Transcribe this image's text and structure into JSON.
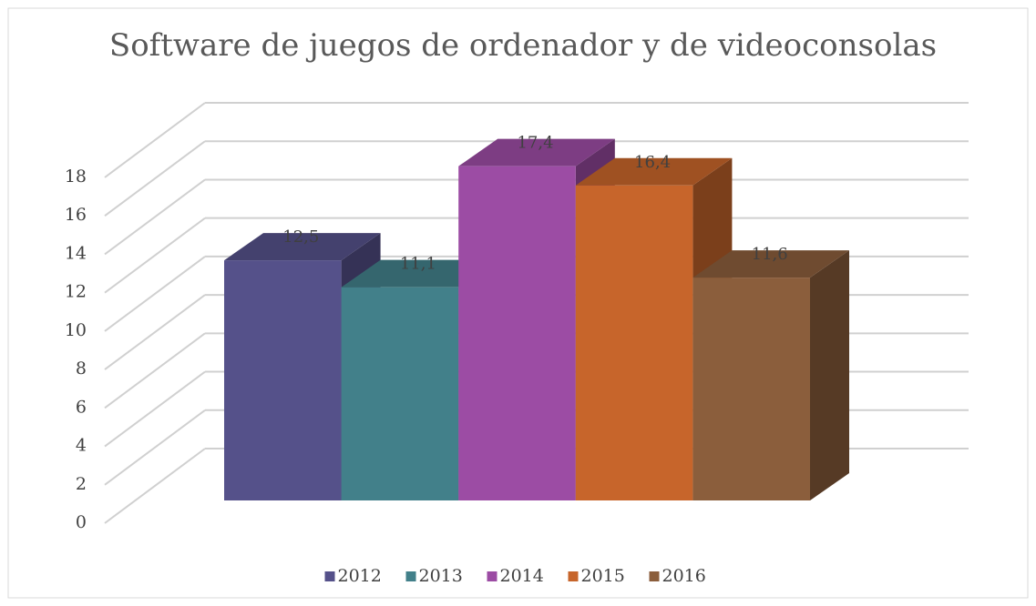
{
  "chart_data": {
    "type": "bar",
    "title": "Software de juegos de ordenador y de videoconsolas",
    "series": [
      {
        "name": "2012",
        "color": "#55518a",
        "values": [
          12.5
        ],
        "value_labels": [
          "12,5"
        ]
      },
      {
        "name": "2013",
        "color": "#42808a",
        "values": [
          11.1
        ],
        "value_labels": [
          "11,1"
        ]
      },
      {
        "name": "2014",
        "color": "#9c4ca4",
        "values": [
          17.4
        ],
        "value_labels": [
          "17,4"
        ]
      },
      {
        "name": "2015",
        "color": "#c7652b",
        "values": [
          16.4
        ],
        "value_labels": [
          "16,4"
        ]
      },
      {
        "name": "2016",
        "color": "#8b5e3c",
        "values": [
          11.6
        ],
        "value_labels": [
          "11,6"
        ]
      }
    ],
    "ylim": [
      0,
      18
    ],
    "yticks": [
      0,
      2,
      4,
      6,
      8,
      10,
      12,
      14,
      16,
      18
    ],
    "grid": true,
    "legend": "bottom"
  }
}
